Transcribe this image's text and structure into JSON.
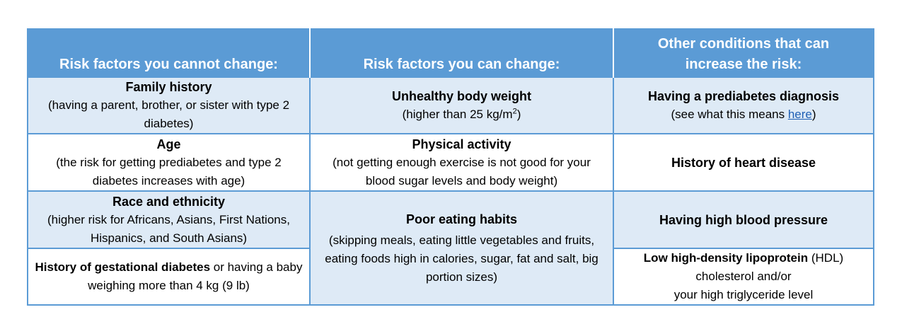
{
  "headers": [
    "Risk factors you cannot change:",
    "Risk factors you can change:",
    "Other conditions that can increase the risk:"
  ],
  "col1": [
    {
      "title": "Family history",
      "desc": "(having a parent, brother, or sister with type 2 diabetes)"
    },
    {
      "title": "Age",
      "desc": "(the risk for getting prediabetes and type 2 diabetes increases with age)"
    },
    {
      "title": "Race and ethnicity",
      "desc": "(higher risk for Africans, Asians, First Nations, Hispanics, and South Asians)"
    },
    {
      "bold": "History of gestational diabetes",
      "rest": " or having a baby weighing more than 4 kg (9 lb)"
    }
  ],
  "col2": [
    {
      "title": "Unhealthy body weight",
      "desc_pre": "(higher than 25 kg/m",
      "desc_sup": "2",
      "desc_post": ")"
    },
    {
      "title": "Physical activity",
      "desc": "(not getting enough exercise is not good for your blood sugar levels and  body weight)"
    },
    {
      "title": "Poor eating habits",
      "desc": "(skipping meals, eating little vegetables and fruits, eating foods high in calories, sugar, fat and salt, big portion sizes)"
    }
  ],
  "col3": [
    {
      "title": "Having a prediabetes diagnosis",
      "desc_pre": "(see what this means ",
      "link": "here",
      "desc_post": ")"
    },
    {
      "title": "History of heart disease"
    },
    {
      "title": "Having high blood pressure"
    },
    {
      "bold": "Low high-density lipoprotein",
      "rest1": " (HDL)",
      "line2": "cholesterol and/or",
      "line3": "your high triglyceride level"
    }
  ],
  "colors": {
    "header_bg": "#5b9bd5",
    "shade_bg": "#deeaf6",
    "border": "#5b9bd5",
    "link": "#1f5fb4"
  }
}
